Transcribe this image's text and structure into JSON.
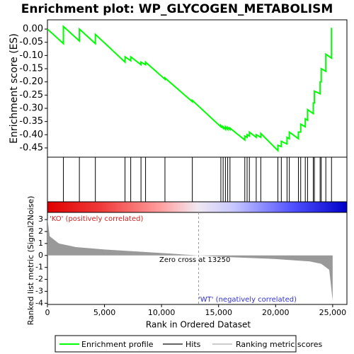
{
  "chart_data": [
    {
      "type": "line",
      "title": "Enrichment plot: WP_GLYCOGEN_METABOLISM",
      "ylabel": "Enrichment score (ES)",
      "xlim": [
        0,
        26250
      ],
      "ylim": [
        -0.485,
        0.035
      ],
      "yticks": [
        {
          "value": 0,
          "label": "0.00"
        },
        {
          "value": -0.05,
          "label": "-0.05"
        },
        {
          "value": -0.1,
          "label": "-0.10"
        },
        {
          "value": -0.15,
          "label": "-0.15"
        },
        {
          "value": -0.2,
          "label": "-0.20"
        },
        {
          "value": -0.25,
          "label": "-0.25"
        },
        {
          "value": -0.3,
          "label": "-0.30"
        },
        {
          "value": -0.35,
          "label": "-0.35"
        },
        {
          "value": -0.4,
          "label": "-0.40"
        },
        {
          "value": -0.45,
          "label": "-0.45"
        }
      ],
      "series": [
        {
          "name": "Enrichment profile",
          "color": "#00ff00",
          "x": [
            0,
            1400,
            1400,
            2800,
            2800,
            4200,
            4200,
            6800,
            6800,
            7300,
            7300,
            8200,
            8200,
            8600,
            8600,
            10300,
            10300,
            12700,
            12700,
            15200,
            15200,
            15400,
            15400,
            15600,
            15600,
            15800,
            15800,
            16000,
            16000,
            17300,
            17300,
            17500,
            17500,
            17700,
            17700,
            18300,
            18300,
            18700,
            18700,
            20200,
            20200,
            20500,
            20500,
            21000,
            21000,
            21200,
            21200,
            22000,
            22000,
            22200,
            22200,
            22600,
            22600,
            22800,
            22800,
            23300,
            23300,
            23400,
            23400,
            23900,
            23900,
            24000,
            24000,
            24400,
            24400,
            24900,
            24900
          ],
          "values": [
            0,
            -0.055,
            0.01,
            -0.045,
            0,
            -0.055,
            -0.02,
            -0.125,
            -0.105,
            -0.12,
            -0.105,
            -0.135,
            -0.125,
            -0.135,
            -0.125,
            -0.19,
            -0.185,
            -0.275,
            -0.27,
            -0.37,
            -0.365,
            -0.375,
            -0.37,
            -0.38,
            -0.37,
            -0.38,
            -0.372,
            -0.38,
            -0.375,
            -0.42,
            -0.405,
            -0.41,
            -0.4,
            -0.405,
            -0.39,
            -0.41,
            -0.4,
            -0.41,
            -0.395,
            -0.46,
            -0.44,
            -0.445,
            -0.425,
            -0.435,
            -0.41,
            -0.415,
            -0.39,
            -0.415,
            -0.39,
            -0.39,
            -0.36,
            -0.37,
            -0.34,
            -0.345,
            -0.305,
            -0.32,
            -0.28,
            -0.28,
            -0.235,
            -0.245,
            -0.2,
            -0.2,
            -0.15,
            -0.16,
            -0.095,
            -0.11,
            0.005
          ]
        }
      ]
    },
    {
      "type": "rug",
      "name": "Hits",
      "color": "#000000",
      "xlim": [
        0,
        26250
      ],
      "x": [
        1400,
        2800,
        4200,
        6800,
        7300,
        8200,
        8600,
        10300,
        12700,
        15200,
        15400,
        15600,
        15800,
        16000,
        17300,
        17500,
        17700,
        18300,
        18700,
        20200,
        20500,
        21000,
        21200,
        22000,
        22200,
        22600,
        22800,
        23300,
        23400,
        23900,
        24000,
        24400,
        24900
      ]
    },
    {
      "type": "area",
      "ylabel": "Ranked list metric (Signal2Noise)",
      "xlabel": "Rank in Ordered Dataset",
      "xlim": [
        0,
        26250
      ],
      "ylim": [
        -4.1,
        3.6
      ],
      "xticks": [
        0,
        {
          "value": 5000,
          "label": "5,000"
        },
        {
          "value": 10000,
          "label": "10,000"
        },
        {
          "value": 15000,
          "label": "15,000"
        },
        {
          "value": 20000,
          "label": "20,000"
        },
        {
          "value": 25000,
          "label": "25,000"
        }
      ],
      "yticks": [
        3,
        2,
        1,
        0,
        -1,
        -2,
        -3,
        -4
      ],
      "zero_cross": 13250,
      "annotations": [
        "'KO' (positively correlated)",
        "Zero cross at 13250",
        "'WT' (negatively correlated)"
      ],
      "series": [
        {
          "name": "Ranking metric scores",
          "color": "#999999",
          "x": [
            0,
            200,
            1000,
            2500,
            5000,
            10000,
            13250,
            16000,
            20000,
            23000,
            24000,
            24700,
            25000
          ],
          "values": [
            3.1,
            1.6,
            1.0,
            0.7,
            0.5,
            0.2,
            0,
            -0.15,
            -0.3,
            -0.5,
            -0.7,
            -1.2,
            -3.8
          ]
        }
      ]
    }
  ]
}
